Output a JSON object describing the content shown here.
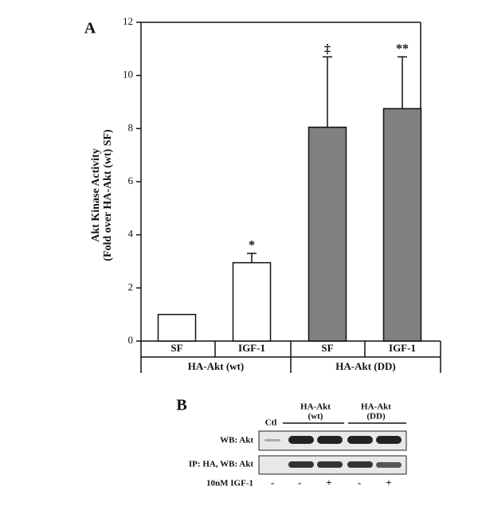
{
  "chart_data": {
    "type": "bar",
    "panel_label": "A",
    "ylabel": [
      "Akt Kinase Activity",
      "(Fold over HA-Akt (wt) SF)"
    ],
    "categories": [
      "SF",
      "IGF-1",
      "SF",
      "IGF-1"
    ],
    "groups": [
      "HA-Akt (wt)",
      "HA-Akt (DD)"
    ],
    "series": [
      {
        "values": [
          1,
          2.95,
          8.05,
          8.75
        ],
        "errors": [
          0,
          0.35,
          2.65,
          1.95
        ],
        "colors": [
          "#ffffff",
          "#ffffff",
          "#808080",
          "#808080"
        ],
        "annotations": [
          null,
          "*",
          "‡",
          "**"
        ]
      }
    ],
    "ylim": [
      0,
      12
    ],
    "yticks": [
      0,
      2,
      4,
      6,
      8,
      10,
      12
    ]
  },
  "blot": {
    "panel_label": "B",
    "control": "Ctl",
    "groups": [
      [
        "HA-Akt",
        "(wt)"
      ],
      [
        "HA-Akt",
        "(DD)"
      ]
    ],
    "rows": [
      "WB: Akt",
      "IP: HA, WB: Akt"
    ],
    "treatment": "10nM IGF-1",
    "signs": [
      "-",
      "-",
      "+",
      "-",
      "+"
    ]
  }
}
